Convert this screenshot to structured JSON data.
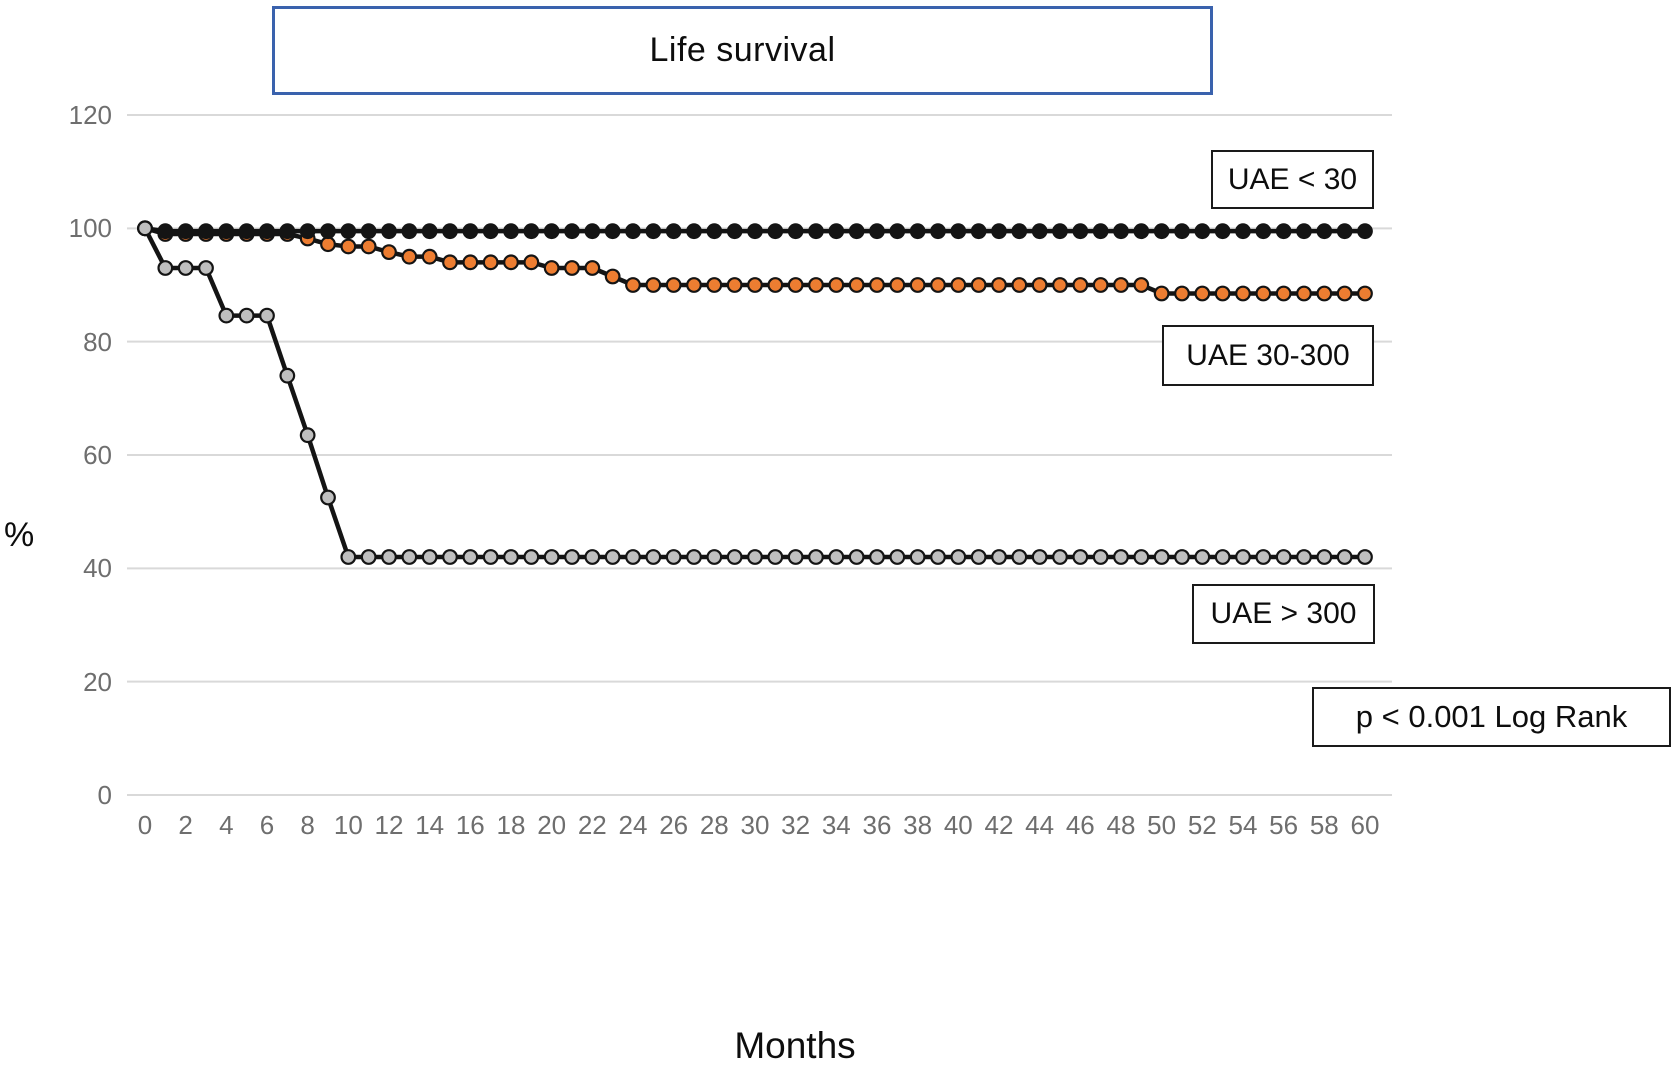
{
  "title": "Life survival",
  "axis": {
    "y_label": "%",
    "x_label": "Months"
  },
  "annotations": {
    "series1_label": "UAE < 30",
    "series2_label": "UAE 30-300",
    "series3_label": "UAE > 300",
    "pvalue_label": "p < 0.001 Log Rank"
  },
  "colors": {
    "background": "#ffffff",
    "line": "#141414",
    "series_black_marker": "#141414",
    "series_orange_marker": "#ED7D31",
    "series_gray_marker": "#BFBFBF",
    "marker_stroke": "#141414",
    "gridline": "#D9D9D9",
    "tick_text": "#6e6e6e",
    "title_border": "#3A62AD",
    "annotation_border": "#1a1a1a"
  },
  "chart_data": {
    "type": "line",
    "title": "Life survival",
    "xlabel": "Months",
    "ylabel": "%",
    "ylim": [
      0,
      120
    ],
    "xlim": [
      0,
      60
    ],
    "y_ticks": [
      0,
      20,
      40,
      60,
      80,
      100,
      120
    ],
    "x_ticks": [
      0,
      2,
      4,
      6,
      8,
      10,
      12,
      14,
      16,
      18,
      20,
      22,
      24,
      26,
      28,
      30,
      32,
      34,
      36,
      38,
      40,
      42,
      44,
      46,
      48,
      50,
      52,
      54,
      56,
      58,
      60
    ],
    "grid": "horizontal",
    "legend_position": "boxed annotations beside curves",
    "annotation": "p < 0.001 Log Rank",
    "x": [
      0,
      1,
      2,
      3,
      4,
      5,
      6,
      7,
      8,
      9,
      10,
      11,
      12,
      13,
      14,
      15,
      16,
      17,
      18,
      19,
      20,
      21,
      22,
      23,
      24,
      25,
      26,
      27,
      28,
      29,
      30,
      31,
      32,
      33,
      34,
      35,
      36,
      37,
      38,
      39,
      40,
      41,
      42,
      43,
      44,
      45,
      46,
      47,
      48,
      49,
      50,
      51,
      52,
      53,
      54,
      55,
      56,
      57,
      58,
      59,
      60
    ],
    "series": [
      {
        "name": "UAE < 30",
        "marker_fill": "#141414",
        "values": [
          100,
          99.5,
          99.5,
          99.5,
          99.5,
          99.5,
          99.5,
          99.5,
          99.5,
          99.5,
          99.5,
          99.5,
          99.5,
          99.5,
          99.5,
          99.5,
          99.5,
          99.5,
          99.5,
          99.5,
          99.5,
          99.5,
          99.5,
          99.5,
          99.5,
          99.5,
          99.5,
          99.5,
          99.5,
          99.5,
          99.5,
          99.5,
          99.5,
          99.5,
          99.5,
          99.5,
          99.5,
          99.5,
          99.5,
          99.5,
          99.5,
          99.5,
          99.5,
          99.5,
          99.5,
          99.5,
          99.5,
          99.5,
          99.5,
          99.5,
          99.5,
          99.5,
          99.5,
          99.5,
          99.5,
          99.5,
          99.5,
          99.5,
          99.5,
          99.5,
          99.5
        ]
      },
      {
        "name": "UAE 30-300",
        "marker_fill": "#ED7D31",
        "values": [
          100,
          99,
          99,
          99,
          99,
          99,
          99,
          99,
          98.2,
          97.2,
          96.8,
          96.8,
          95.8,
          95,
          95,
          94,
          94,
          94,
          94,
          94,
          93,
          93,
          93,
          91.5,
          90,
          90,
          90,
          90,
          90,
          90,
          90,
          90,
          90,
          90,
          90,
          90,
          90,
          90,
          90,
          90,
          90,
          90,
          90,
          90,
          90,
          90,
          90,
          90,
          90,
          90,
          88.5,
          88.5,
          88.5,
          88.5,
          88.5,
          88.5,
          88.5,
          88.5,
          88.5,
          88.5,
          88.5
        ]
      },
      {
        "name": "UAE > 300",
        "marker_fill": "#BFBFBF",
        "values": [
          100,
          93,
          93,
          93,
          84.6,
          84.6,
          84.6,
          74,
          63.5,
          52.5,
          42,
          42,
          42,
          42,
          42,
          42,
          42,
          42,
          42,
          42,
          42,
          42,
          42,
          42,
          42,
          42,
          42,
          42,
          42,
          42,
          42,
          42,
          42,
          42,
          42,
          42,
          42,
          42,
          42,
          42,
          42,
          42,
          42,
          42,
          42,
          42,
          42,
          42,
          42,
          42,
          42,
          42,
          42,
          42,
          42,
          42,
          42,
          42,
          42,
          42,
          42
        ]
      }
    ]
  }
}
